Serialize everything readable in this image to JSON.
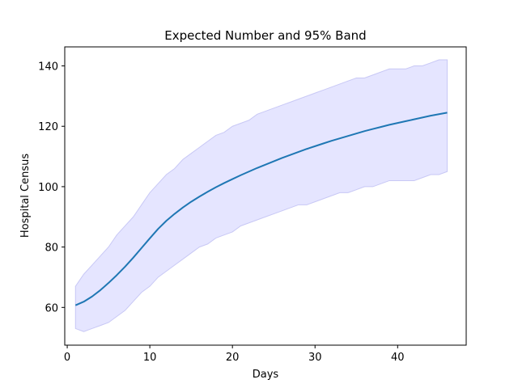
{
  "chart_data": {
    "type": "line",
    "title": "Expected Number and 95% Band",
    "xlabel": "Days",
    "ylabel": "Hospital Census",
    "xlim": [
      -0.3,
      48.3
    ],
    "ylim": [
      47.5,
      146.3
    ],
    "xticks": [
      0,
      10,
      20,
      30,
      40
    ],
    "yticks": [
      60,
      80,
      100,
      120,
      140
    ],
    "grid": false,
    "colors": {
      "line": "#1f77b4",
      "band_fill": "#e5e5ff",
      "band_edge": "#c8c8f5",
      "axes": "#000000"
    },
    "x": [
      1,
      2,
      3,
      4,
      5,
      6,
      7,
      8,
      9,
      10,
      11,
      12,
      13,
      14,
      15,
      16,
      17,
      18,
      19,
      20,
      21,
      22,
      23,
      24,
      25,
      26,
      27,
      28,
      29,
      30,
      31,
      32,
      33,
      34,
      35,
      36,
      37,
      38,
      39,
      40,
      41,
      42,
      43,
      44,
      45,
      46
    ],
    "series": [
      {
        "name": "expected",
        "values": [
          60.7,
          61.9,
          63.6,
          65.7,
          68.1,
          70.7,
          73.5,
          76.5,
          79.7,
          82.9,
          86.0,
          88.7,
          91.0,
          93.1,
          95.0,
          96.7,
          98.3,
          99.8,
          101.2,
          102.5,
          103.8,
          105.0,
          106.2,
          107.3,
          108.4,
          109.5,
          110.5,
          111.5,
          112.5,
          113.4,
          114.3,
          115.2,
          116.0,
          116.8,
          117.6,
          118.4,
          119.1,
          119.8,
          120.5,
          121.1,
          121.7,
          122.3,
          122.9,
          123.5,
          124.0,
          124.5
        ]
      }
    ],
    "band": {
      "lower": [
        53,
        52,
        53,
        54,
        55,
        57,
        59,
        62,
        65,
        67,
        70,
        72,
        74,
        76,
        78,
        80,
        81,
        83,
        84,
        85,
        87,
        88,
        89,
        90,
        91,
        92,
        93,
        94,
        94,
        95,
        96,
        97,
        98,
        98,
        99,
        100,
        100,
        101,
        102,
        102,
        102,
        102,
        103,
        104,
        104,
        105
      ],
      "upper": [
        67,
        71,
        74,
        77,
        80,
        84,
        87,
        90,
        94,
        98,
        101,
        104,
        106,
        109,
        111,
        113,
        115,
        117,
        118,
        120,
        121,
        122,
        124,
        125,
        126,
        127,
        128,
        129,
        130,
        131,
        132,
        133,
        134,
        135,
        136,
        136,
        137,
        138,
        139,
        139,
        139,
        140,
        140,
        141,
        142,
        142
      ]
    }
  }
}
